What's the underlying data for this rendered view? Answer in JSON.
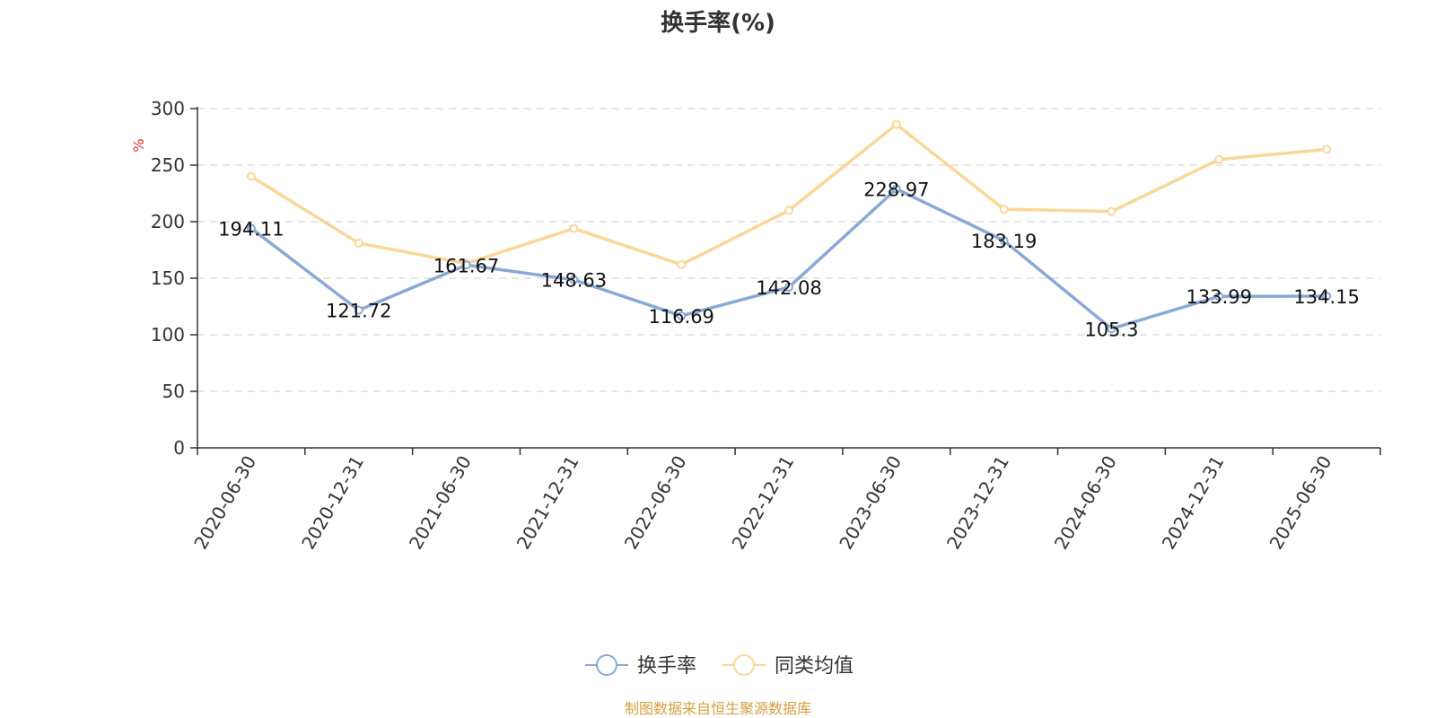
{
  "chart_data": {
    "type": "line",
    "title": "换手率(%)",
    "ylabel": "%",
    "ylim": [
      0,
      300
    ],
    "yticks": [
      0,
      50,
      100,
      150,
      200,
      250,
      300
    ],
    "grid": true,
    "legend_position": "bottom",
    "categories": [
      "2020-06-30",
      "2020-12-31",
      "2021-06-30",
      "2021-12-31",
      "2022-06-30",
      "2022-12-31",
      "2023-06-30",
      "2023-12-31",
      "2024-06-30",
      "2024-12-31",
      "2025-06-30"
    ],
    "series": [
      {
        "name": "换手率",
        "color": "#8aa8d6",
        "values": [
          194.11,
          121.72,
          161.67,
          148.63,
          116.69,
          142.08,
          228.97,
          183.19,
          105.3,
          133.99,
          134.15
        ],
        "labels": [
          "194.11",
          "121.72",
          "161.67",
          "148.63",
          "116.69",
          "142.08",
          "228.97",
          "183.19",
          "105.3",
          "133.99",
          "134.15"
        ]
      },
      {
        "name": "同类均值",
        "color": "#fad797",
        "values": [
          240,
          181,
          163,
          194,
          162,
          210,
          286,
          211,
          209,
          255,
          264
        ]
      }
    ]
  },
  "source_text": "制图数据来自恒生聚源数据库",
  "colors": {
    "axis": "#333333",
    "grid": "#cccccc",
    "unit_label": "#e03030",
    "source_text": "#d4a040"
  }
}
